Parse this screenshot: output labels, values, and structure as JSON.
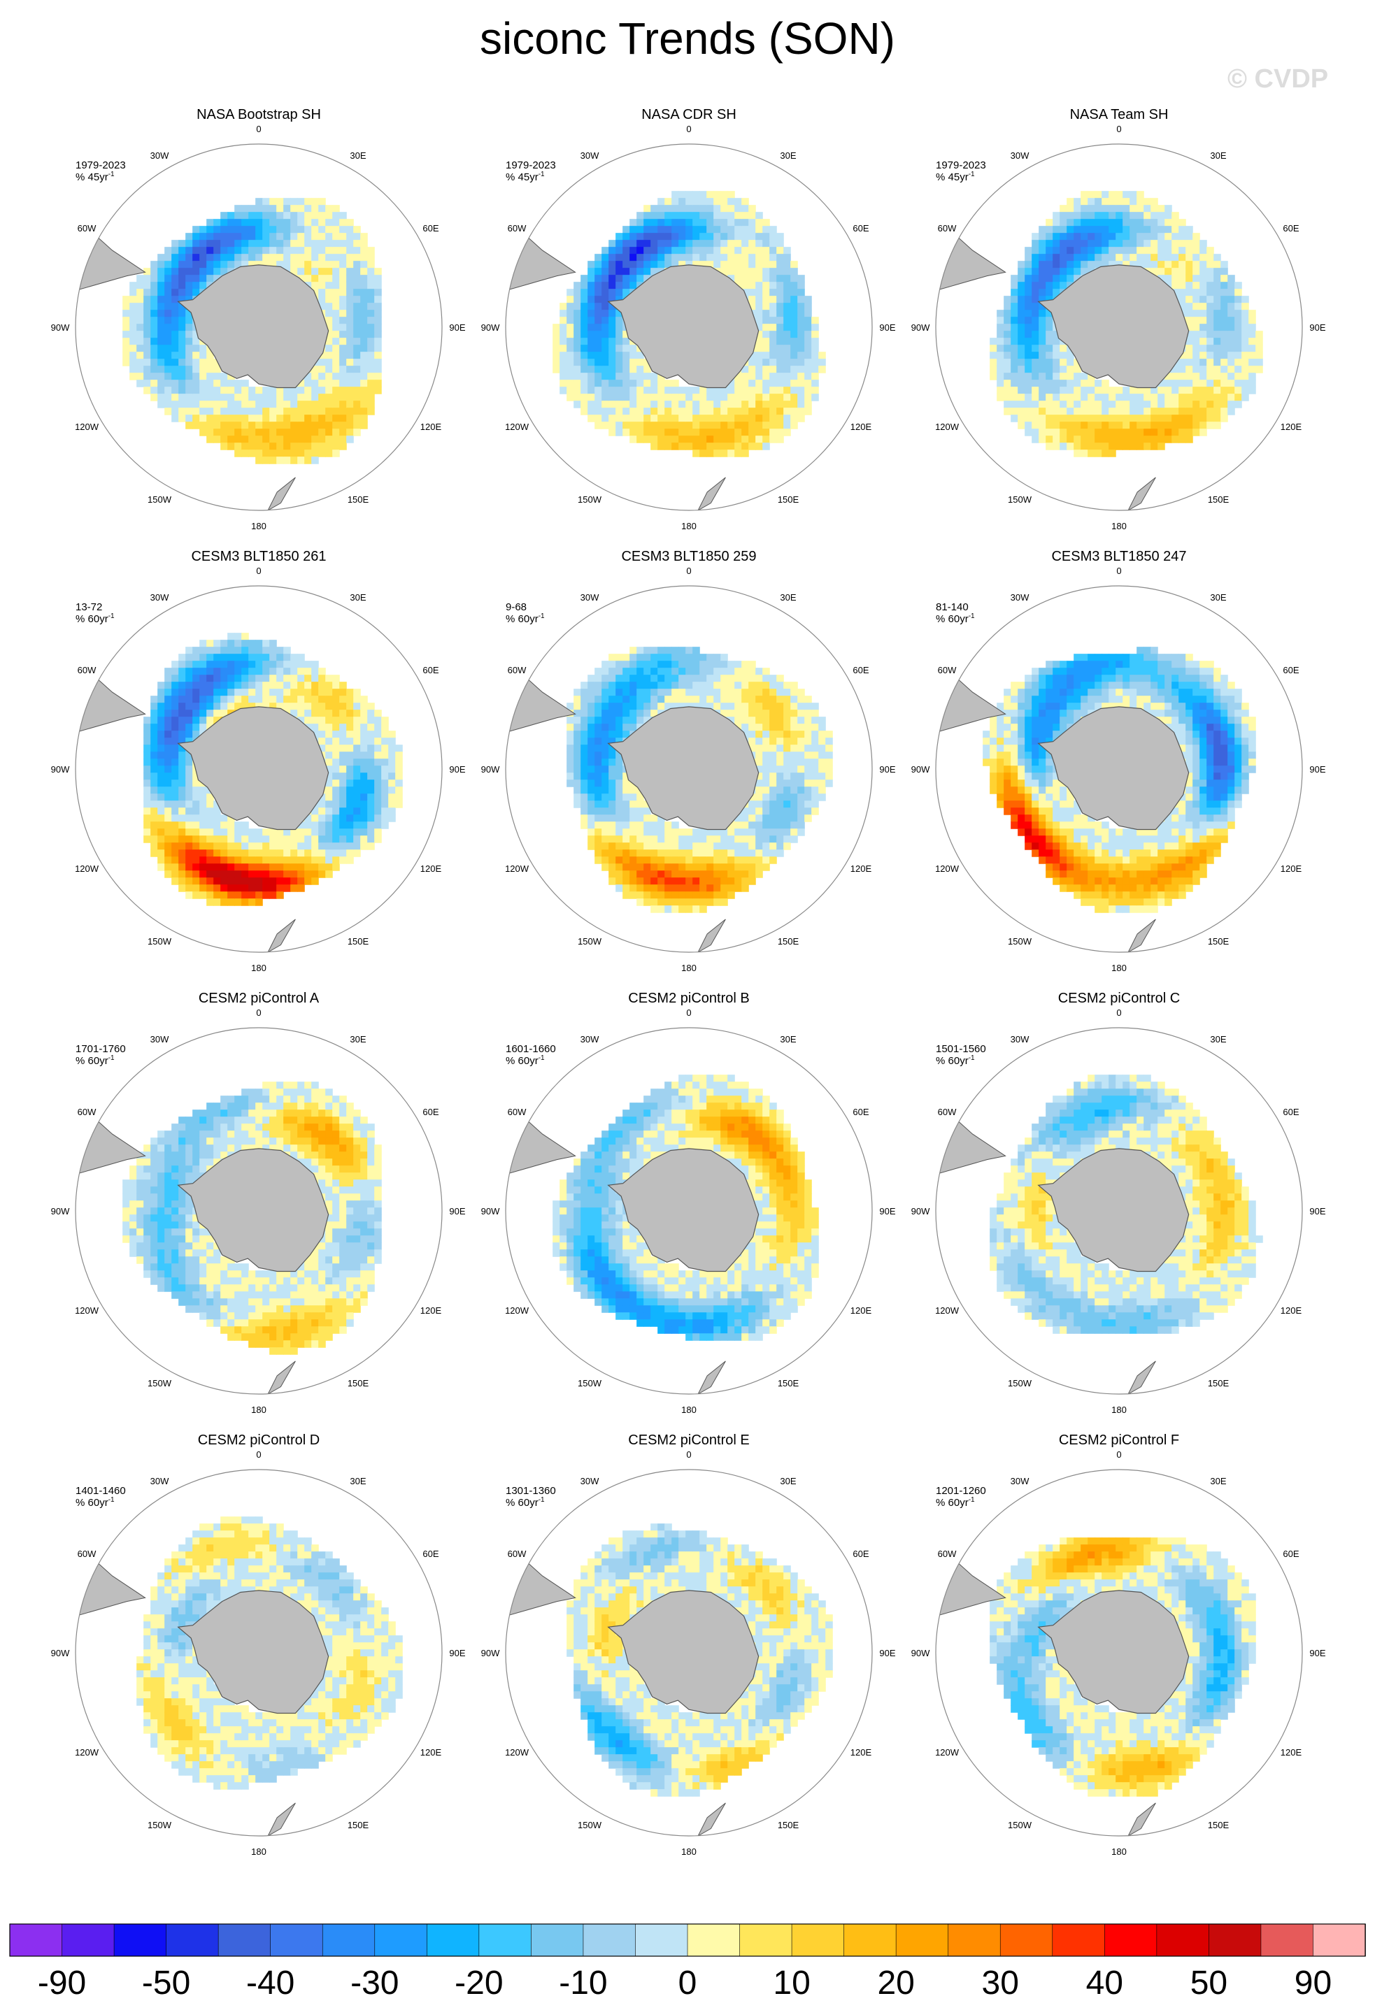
{
  "title": "siconc Trends (SON)",
  "watermark": "© CVDP",
  "lon_labels": [
    "0",
    "30E",
    "60E",
    "90E",
    "120E",
    "150E",
    "180",
    "150W",
    "120W",
    "90W",
    "60W",
    "30W"
  ],
  "panels": [
    {
      "title": "NASA Bootstrap SH",
      "period": "1979-2023",
      "units": "% 45yr",
      "units_exp": "-1",
      "blobs": [
        {
          "a": -20,
          "r": 0.55,
          "v": -22
        },
        {
          "a": 40,
          "r": 0.5,
          "v": 12
        },
        {
          "a": 80,
          "r": 0.55,
          "v": -18
        },
        {
          "a": 150,
          "r": 0.6,
          "v": 14
        },
        {
          "a": 200,
          "r": 0.58,
          "v": 12
        },
        {
          "a": 250,
          "r": 0.55,
          "v": -14
        },
        {
          "a": 290,
          "r": 0.5,
          "v": -24
        },
        {
          "a": 330,
          "r": 0.52,
          "v": -16
        },
        {
          "a": 120,
          "r": 0.72,
          "v": 6
        }
      ]
    },
    {
      "title": "NASA CDR SH",
      "period": "1979-2023",
      "units": "% 45yr",
      "units_exp": "-1",
      "blobs": [
        {
          "a": -20,
          "r": 0.55,
          "v": -24
        },
        {
          "a": 40,
          "r": 0.5,
          "v": 10
        },
        {
          "a": 80,
          "r": 0.55,
          "v": -20
        },
        {
          "a": 150,
          "r": 0.6,
          "v": 14
        },
        {
          "a": 200,
          "r": 0.58,
          "v": 12
        },
        {
          "a": 250,
          "r": 0.55,
          "v": -14
        },
        {
          "a": 290,
          "r": 0.5,
          "v": -26
        },
        {
          "a": 330,
          "r": 0.52,
          "v": -18
        }
      ]
    },
    {
      "title": "NASA Team SH",
      "period": "1979-2023",
      "units": "% 45yr",
      "units_exp": "-1",
      "blobs": [
        {
          "a": -20,
          "r": 0.55,
          "v": -20
        },
        {
          "a": 40,
          "r": 0.5,
          "v": 12
        },
        {
          "a": 80,
          "r": 0.55,
          "v": -16
        },
        {
          "a": 150,
          "r": 0.6,
          "v": 16
        },
        {
          "a": 200,
          "r": 0.58,
          "v": 14
        },
        {
          "a": 250,
          "r": 0.55,
          "v": -12
        },
        {
          "a": 290,
          "r": 0.5,
          "v": -22
        },
        {
          "a": 330,
          "r": 0.52,
          "v": -14
        }
      ]
    },
    {
      "title": "CESM3 BLT1850 261",
      "period": "13-72",
      "units": "% 60yr",
      "units_exp": "-1",
      "blobs": [
        {
          "a": -30,
          "r": 0.6,
          "v": -30
        },
        {
          "a": 50,
          "r": 0.55,
          "v": 14
        },
        {
          "a": 110,
          "r": 0.55,
          "v": -30
        },
        {
          "a": 180,
          "r": 0.6,
          "v": 40
        },
        {
          "a": 215,
          "r": 0.6,
          "v": 30
        },
        {
          "a": 260,
          "r": 0.55,
          "v": -16
        },
        {
          "a": 300,
          "r": 0.5,
          "v": -26
        },
        {
          "a": 330,
          "r": 0.35,
          "v": 14
        }
      ]
    },
    {
      "title": "CESM3 BLT1850 259",
      "period": "9-68",
      "units": "% 60yr",
      "units_exp": "-1",
      "blobs": [
        {
          "a": -20,
          "r": 0.6,
          "v": -18
        },
        {
          "a": 60,
          "r": 0.55,
          "v": 16
        },
        {
          "a": 110,
          "r": 0.55,
          "v": -20
        },
        {
          "a": 175,
          "r": 0.6,
          "v": 26
        },
        {
          "a": 215,
          "r": 0.6,
          "v": 22
        },
        {
          "a": 260,
          "r": 0.55,
          "v": -22
        },
        {
          "a": 300,
          "r": 0.5,
          "v": -18
        }
      ]
    },
    {
      "title": "CESM3 BLT1850 247",
      "period": "81-140",
      "units": "% 60yr",
      "units_exp": "-1",
      "blobs": [
        {
          "a": -20,
          "r": 0.6,
          "v": -26
        },
        {
          "a": 60,
          "r": 0.55,
          "v": -18
        },
        {
          "a": 95,
          "r": 0.55,
          "v": -40
        },
        {
          "a": 130,
          "r": 0.6,
          "v": 26
        },
        {
          "a": 175,
          "r": 0.6,
          "v": 14
        },
        {
          "a": 240,
          "r": 0.6,
          "v": 46
        },
        {
          "a": 290,
          "r": 0.5,
          "v": -30
        }
      ]
    },
    {
      "title": "CESM2 piControl A",
      "period": "1701-1760",
      "units": "% 60yr",
      "units_exp": "-1",
      "blobs": [
        {
          "a": -20,
          "r": 0.6,
          "v": -16
        },
        {
          "a": 40,
          "r": 0.55,
          "v": 26
        },
        {
          "a": 100,
          "r": 0.55,
          "v": -14
        },
        {
          "a": 170,
          "r": 0.65,
          "v": 18
        },
        {
          "a": 230,
          "r": 0.6,
          "v": -16
        },
        {
          "a": 290,
          "r": 0.5,
          "v": -18
        },
        {
          "a": 320,
          "r": 0.5,
          "v": 8
        }
      ]
    },
    {
      "title": "CESM2 piControl B",
      "period": "1601-1660",
      "units": "% 60yr",
      "units_exp": "-1",
      "blobs": [
        {
          "a": -30,
          "r": 0.6,
          "v": -18
        },
        {
          "a": 35,
          "r": 0.55,
          "v": 28
        },
        {
          "a": 100,
          "r": 0.55,
          "v": 10
        },
        {
          "a": 170,
          "r": 0.6,
          "v": -22
        },
        {
          "a": 230,
          "r": 0.6,
          "v": -26
        },
        {
          "a": 290,
          "r": 0.5,
          "v": -14
        },
        {
          "a": 320,
          "r": 0.5,
          "v": 10
        }
      ]
    },
    {
      "title": "CESM2 piControl C",
      "period": "1501-1560",
      "units": "% 60yr",
      "units_exp": "-1",
      "blobs": [
        {
          "a": -10,
          "r": 0.6,
          "v": -18
        },
        {
          "a": 50,
          "r": 0.55,
          "v": 10
        },
        {
          "a": 100,
          "r": 0.55,
          "v": 12
        },
        {
          "a": 170,
          "r": 0.6,
          "v": -14
        },
        {
          "a": 240,
          "r": 0.6,
          "v": -12
        },
        {
          "a": 280,
          "r": 0.5,
          "v": 16
        },
        {
          "a": 320,
          "r": 0.5,
          "v": -10
        }
      ]
    },
    {
      "title": "CESM2 piControl D",
      "period": "1401-1460",
      "units": "% 60yr",
      "units_exp": "-1",
      "blobs": [
        {
          "a": -20,
          "r": 0.6,
          "v": 12
        },
        {
          "a": 40,
          "r": 0.55,
          "v": -12
        },
        {
          "a": 110,
          "r": 0.55,
          "v": 10
        },
        {
          "a": 170,
          "r": 0.6,
          "v": -10
        },
        {
          "a": 230,
          "r": 0.6,
          "v": 12
        },
        {
          "a": 300,
          "r": 0.5,
          "v": -14
        }
      ]
    },
    {
      "title": "CESM2 piControl E",
      "period": "1301-1360",
      "units": "% 60yr",
      "units_exp": "-1",
      "blobs": [
        {
          "a": -20,
          "r": 0.6,
          "v": -12
        },
        {
          "a": 50,
          "r": 0.55,
          "v": 14
        },
        {
          "a": 110,
          "r": 0.55,
          "v": -16
        },
        {
          "a": 160,
          "r": 0.62,
          "v": 18
        },
        {
          "a": 220,
          "r": 0.62,
          "v": -26
        },
        {
          "a": 290,
          "r": 0.5,
          "v": 12
        }
      ]
    },
    {
      "title": "CESM2 piControl F",
      "period": "1201-1260",
      "units": "% 60yr",
      "units_exp": "-1",
      "blobs": [
        {
          "a": -10,
          "r": 0.6,
          "v": 12
        },
        {
          "a": 60,
          "r": 0.55,
          "v": -14
        },
        {
          "a": 110,
          "r": 0.55,
          "v": -18
        },
        {
          "a": 170,
          "r": 0.62,
          "v": 22
        },
        {
          "a": 230,
          "r": 0.62,
          "v": -20
        },
        {
          "a": 300,
          "r": 0.5,
          "v": -22
        },
        {
          "a": 330,
          "r": 0.55,
          "v": 20
        }
      ]
    }
  ],
  "colorbar": {
    "colors": [
      "#8c2ff0",
      "#5a1ef0",
      "#0f0ff5",
      "#1e32e8",
      "#3c64dc",
      "#3c78ee",
      "#2a8cf8",
      "#1e9cff",
      "#10b4ff",
      "#3cc8ff",
      "#78c8f0",
      "#a0d2f0",
      "#c0e4f6",
      "#fffaaa",
      "#ffe65a",
      "#ffd232",
      "#ffbe14",
      "#ffa500",
      "#ff8c00",
      "#ff6400",
      "#ff3200",
      "#ff0000",
      "#dc0000",
      "#c80a0a",
      "#e65a5a",
      "#ffb4b4"
    ],
    "labels": [
      "-90",
      "-50",
      "-40",
      "-30",
      "-20",
      "-10",
      "0",
      "10",
      "20",
      "30",
      "40",
      "50",
      "90"
    ]
  }
}
